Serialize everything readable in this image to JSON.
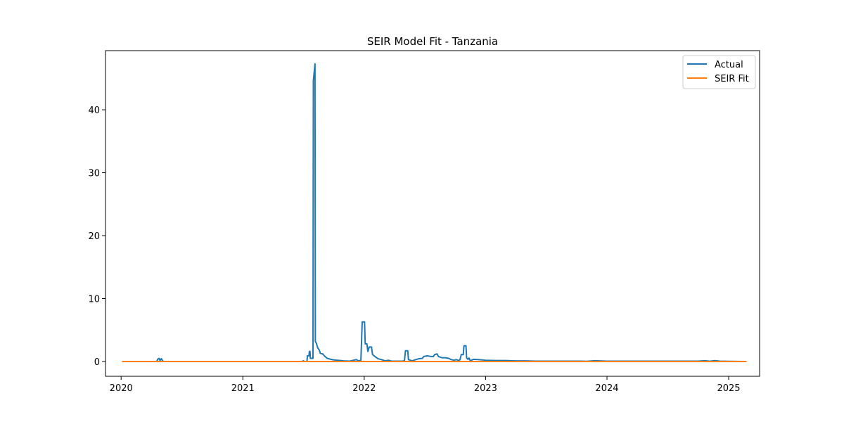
{
  "chart_data": {
    "type": "line",
    "title": "SEIR Model Fit - Tanzania",
    "xlabel": "",
    "ylabel": "",
    "x_ticks": [
      "2020",
      "2021",
      "2022",
      "2023",
      "2024",
      "2025"
    ],
    "y_ticks": [
      "0",
      "10",
      "20",
      "30",
      "40"
    ],
    "xlim": [
      "2019-11-15",
      "2025-04-04"
    ],
    "ylim": [
      -2.35,
      49.4
    ],
    "grid": false,
    "legend_position": "top-right",
    "series": [
      {
        "name": "Actual",
        "color": "#1f77b4",
        "points": [
          [
            "2020-01-04",
            0
          ],
          [
            "2020-04-17",
            0
          ],
          [
            "2020-04-20",
            0.35
          ],
          [
            "2020-04-24",
            0.5
          ],
          [
            "2020-04-27",
            0.15
          ],
          [
            "2020-05-01",
            0.45
          ],
          [
            "2020-05-05",
            0.1
          ],
          [
            "2020-05-08",
            0
          ],
          [
            "2021-06-29",
            0
          ],
          [
            "2021-07-01",
            0.1
          ],
          [
            "2021-07-06",
            0
          ],
          [
            "2021-07-13",
            0
          ],
          [
            "2021-07-14",
            0.9
          ],
          [
            "2021-07-19",
            0.9
          ],
          [
            "2021-07-20",
            1.6
          ],
          [
            "2021-07-22",
            1.6
          ],
          [
            "2021-07-23",
            0.5
          ],
          [
            "2021-07-31",
            0.5
          ],
          [
            "2021-08-01",
            44.6
          ],
          [
            "2021-08-06",
            47.3
          ],
          [
            "2021-08-07",
            3.2
          ],
          [
            "2021-08-10",
            2.9
          ],
          [
            "2021-08-14",
            2.2
          ],
          [
            "2021-08-19",
            1.8
          ],
          [
            "2021-08-22",
            1.3
          ],
          [
            "2021-08-29",
            1.2
          ],
          [
            "2021-09-05",
            0.8
          ],
          [
            "2021-09-12",
            0.5
          ],
          [
            "2021-09-22",
            0.35
          ],
          [
            "2021-10-02",
            0.25
          ],
          [
            "2021-10-12",
            0.2
          ],
          [
            "2021-10-22",
            0.15
          ],
          [
            "2021-11-01",
            0.1
          ],
          [
            "2021-11-18",
            0.05
          ],
          [
            "2021-12-08",
            0.3
          ],
          [
            "2021-12-15",
            0.1
          ],
          [
            "2021-12-22",
            0.2
          ],
          [
            "2021-12-26",
            6.3
          ],
          [
            "2022-01-02",
            6.3
          ],
          [
            "2022-01-04",
            2.8
          ],
          [
            "2022-01-09",
            2.8
          ],
          [
            "2022-01-12",
            1.6
          ],
          [
            "2022-01-16",
            2.3
          ],
          [
            "2022-01-23",
            2.3
          ],
          [
            "2022-01-26",
            1.1
          ],
          [
            "2022-02-02",
            0.8
          ],
          [
            "2022-02-11",
            0.45
          ],
          [
            "2022-02-22",
            0.3
          ],
          [
            "2022-03-05",
            0.1
          ],
          [
            "2022-03-15",
            0.2
          ],
          [
            "2022-03-25",
            0.05
          ],
          [
            "2022-04-25",
            0.05
          ],
          [
            "2022-05-02",
            0.1
          ],
          [
            "2022-05-05",
            1.7
          ],
          [
            "2022-05-12",
            1.7
          ],
          [
            "2022-05-14",
            0.3
          ],
          [
            "2022-05-25",
            0.1
          ],
          [
            "2022-06-05",
            0.3
          ],
          [
            "2022-06-15",
            0.45
          ],
          [
            "2022-06-25",
            0.5
          ],
          [
            "2022-06-29",
            0.8
          ],
          [
            "2022-07-10",
            0.9
          ],
          [
            "2022-07-20",
            0.8
          ],
          [
            "2022-07-28",
            0.8
          ],
          [
            "2022-08-01",
            1.1
          ],
          [
            "2022-08-08",
            1.2
          ],
          [
            "2022-08-12",
            0.8
          ],
          [
            "2022-08-22",
            0.6
          ],
          [
            "2022-09-02",
            0.6
          ],
          [
            "2022-09-12",
            0.5
          ],
          [
            "2022-09-20",
            0.3
          ],
          [
            "2022-09-28",
            0.2
          ],
          [
            "2022-10-05",
            0.3
          ],
          [
            "2022-10-12",
            0.15
          ],
          [
            "2022-10-16",
            0.3
          ],
          [
            "2022-10-20",
            1.1
          ],
          [
            "2022-10-26",
            1.1
          ],
          [
            "2022-10-28",
            2.5
          ],
          [
            "2022-11-03",
            2.5
          ],
          [
            "2022-11-05",
            0.55
          ],
          [
            "2022-11-09",
            0.35
          ],
          [
            "2022-11-12",
            0.55
          ],
          [
            "2022-11-16",
            0.1
          ],
          [
            "2022-11-25",
            0.35
          ],
          [
            "2022-12-10",
            0.3
          ],
          [
            "2023-01-01",
            0.2
          ],
          [
            "2023-02-01",
            0.15
          ],
          [
            "2023-03-01",
            0.15
          ],
          [
            "2023-04-01",
            0.1
          ],
          [
            "2023-05-01",
            0.1
          ],
          [
            "2023-06-01",
            0.05
          ],
          [
            "2023-10-15",
            0.05
          ],
          [
            "2023-11-01",
            0.03
          ],
          [
            "2023-11-25",
            0.12
          ],
          [
            "2023-12-31",
            0.05
          ],
          [
            "2024-10-01",
            0.05
          ],
          [
            "2024-10-22",
            0.12
          ],
          [
            "2024-11-05",
            0.04
          ],
          [
            "2024-11-20",
            0.14
          ],
          [
            "2024-12-05",
            0.05
          ],
          [
            "2025-01-01",
            0.02
          ],
          [
            "2025-02-20",
            0
          ]
        ]
      },
      {
        "name": "SEIR Fit",
        "color": "#ff7f0e",
        "points": [
          [
            "2020-01-04",
            0
          ],
          [
            "2025-02-24",
            0
          ]
        ]
      }
    ]
  }
}
